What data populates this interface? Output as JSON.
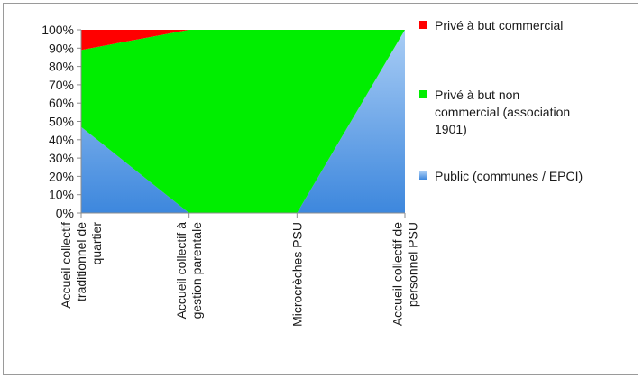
{
  "chart_data": {
    "type": "area",
    "stacked": true,
    "categories": [
      [
        "Accueil collectif",
        "traditionnel de",
        "quartier"
      ],
      [
        "Accueil collectif à",
        "gestion parentale"
      ],
      [
        "Microcrèches PSU"
      ],
      [
        "Accueil collectif de",
        "personnel PSU"
      ]
    ],
    "ylim": [
      0,
      100
    ],
    "yticks": [
      "0%",
      "10%",
      "20%",
      "30%",
      "40%",
      "50%",
      "60%",
      "70%",
      "80%",
      "90%",
      "100%"
    ],
    "series": [
      {
        "name": "Public (communes / EPCI)",
        "values": [
          47,
          0,
          0,
          100
        ],
        "color": "#4a90e2"
      },
      {
        "name": "Privé à but non commercial (association 1901)",
        "values": [
          42,
          100,
          100,
          0
        ],
        "color": "#00ee00"
      },
      {
        "name": "Privé à but commercial",
        "values": [
          11,
          0,
          0,
          0
        ],
        "color": "#ff0000"
      }
    ],
    "legend": {
      "position": "right",
      "entries": [
        {
          "lines": [
            "Privé à but commercial"
          ],
          "color": "#ff0000"
        },
        {
          "lines": [
            "Privé à but non",
            "commercial (association",
            "1901)"
          ],
          "color": "#00ee00"
        },
        {
          "lines": [
            "Public (communes / EPCI)"
          ],
          "color": "#4a90e2"
        }
      ]
    },
    "grid": false
  }
}
